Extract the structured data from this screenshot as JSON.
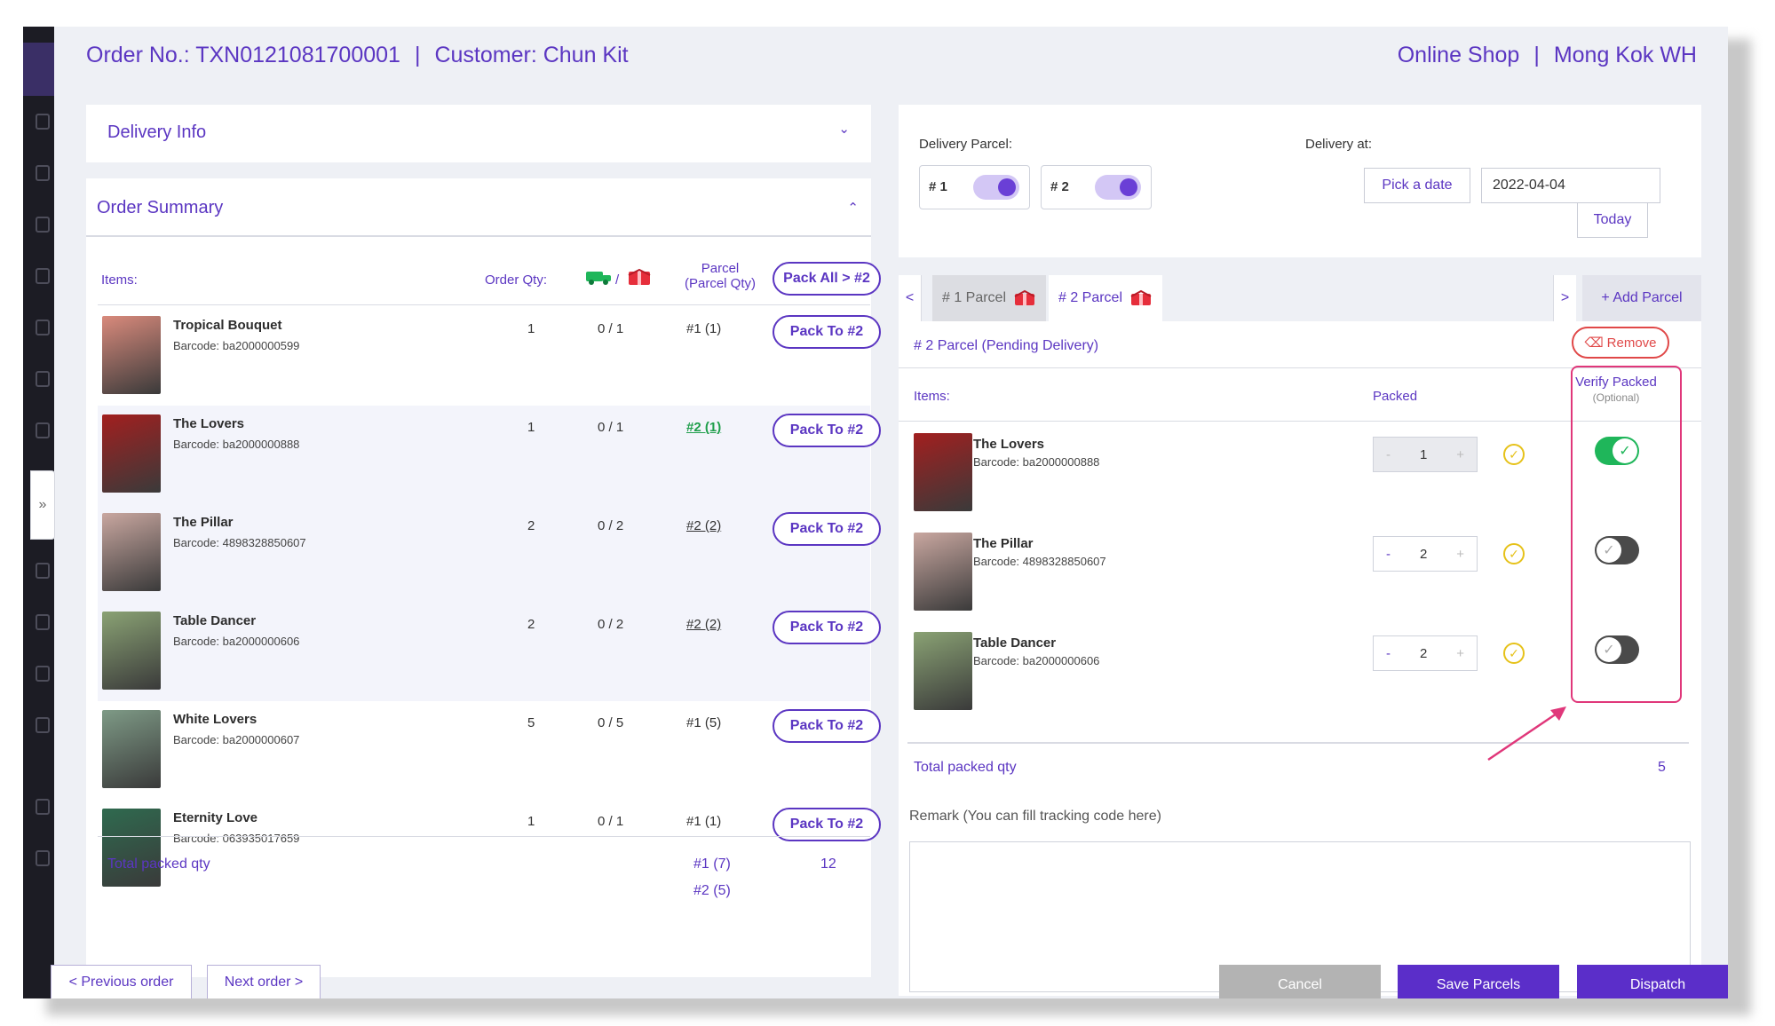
{
  "header": {
    "order_no": "Order No.: TXN0121081700001",
    "separator": "|",
    "customer": "Customer: Chun Kit",
    "shop": "Online Shop",
    "warehouse": "Mong Kok WH"
  },
  "delivery_info": {
    "title": "Delivery Info"
  },
  "order_summary": {
    "title": "Order Summary",
    "columns": {
      "items": "Items:",
      "order_qty": "Order Qty:",
      "slash": "/",
      "parcel": "Parcel",
      "parcel_qty": "(Parcel Qty)"
    },
    "pack_all_label": "Pack All > #2",
    "pack_to_label": "Pack To #2",
    "rows": [
      {
        "name": "Tropical Bouquet",
        "barcode": "Barcode: ba2000000599",
        "qty": "1",
        "packed": "0 / 1",
        "parcel": "#1 (1)",
        "parcel_style": "plain",
        "img": "#d98a7c"
      },
      {
        "name": "The Lovers",
        "barcode": "Barcode: ba2000000888",
        "qty": "1",
        "packed": "0 / 1",
        "parcel": "#2 (1)",
        "parcel_style": "green",
        "img": "#a21f1f"
      },
      {
        "name": "The Pillar",
        "barcode": "Barcode: 4898328850607",
        "qty": "2",
        "packed": "0 / 2",
        "parcel": "#2 (2)",
        "parcel_style": "underline",
        "img": "#c9a7a0"
      },
      {
        "name": "Table Dancer",
        "barcode": "Barcode: ba2000000606",
        "qty": "2",
        "packed": "0 / 2",
        "parcel": "#2 (2)",
        "parcel_style": "underline",
        "img": "#8aa274"
      },
      {
        "name": "White Lovers",
        "barcode": "Barcode: ba2000000607",
        "qty": "5",
        "packed": "0 / 5",
        "parcel": "#1 (5)",
        "parcel_style": "plain",
        "img": "#7e9a86"
      },
      {
        "name": "Eternity Love",
        "barcode": "Barcode: 063935017659",
        "qty": "1",
        "packed": "0 / 1",
        "parcel": "#1 (1)",
        "parcel_style": "plain",
        "img": "#2f6a4f"
      }
    ],
    "total_label": "Total packed qty",
    "total_p1": "#1 (7)",
    "total_p2": "#2 (5)",
    "total_value": "12"
  },
  "footer": {
    "prev_label": "< Previous order",
    "next_label": "Next order >",
    "cancel_label": "Cancel",
    "save_label": "Save Parcels",
    "dispatch_label": "Dispatch"
  },
  "delivery": {
    "parcel_label": "Delivery Parcel:",
    "toggle1": "# 1",
    "toggle2": "# 2",
    "at_label": "Delivery at:",
    "pick_label": "Pick a date",
    "date_value": "2022-04-04",
    "today_label": "Today"
  },
  "tabs": {
    "prev_arrow": "<",
    "next_arrow": ">",
    "tab1": "# 1 Parcel",
    "tab2": "# 2 Parcel",
    "add_label": "+ Add Parcel"
  },
  "parcel": {
    "heading": "# 2 Parcel (Pending Delivery)",
    "remove_label": "Remove",
    "items_label": "Items:",
    "packed_label": "Packed",
    "verify_label": "Verify Packed",
    "optional_label": "(Optional)",
    "minus": "-",
    "plus": "+",
    "rows": [
      {
        "name": "The Lovers",
        "barcode": "Barcode: ba2000000888",
        "packed": "1",
        "verified": true,
        "img": "#a21f1f"
      },
      {
        "name": "The Pillar",
        "barcode": "Barcode: 4898328850607",
        "packed": "2",
        "verified": false,
        "img": "#c9a7a0"
      },
      {
        "name": "Table Dancer",
        "barcode": "Barcode: ba2000000606",
        "packed": "2",
        "verified": false,
        "img": "#8aa274"
      }
    ],
    "total_label": "Total packed qty",
    "total_value": "5",
    "remark_label": "Remark (You can fill tracking code here)"
  },
  "colors": {
    "accent": "#5b36c2",
    "green": "#1fb65a",
    "red": "#e0377a",
    "grey_btn": "#b3b3b3"
  }
}
